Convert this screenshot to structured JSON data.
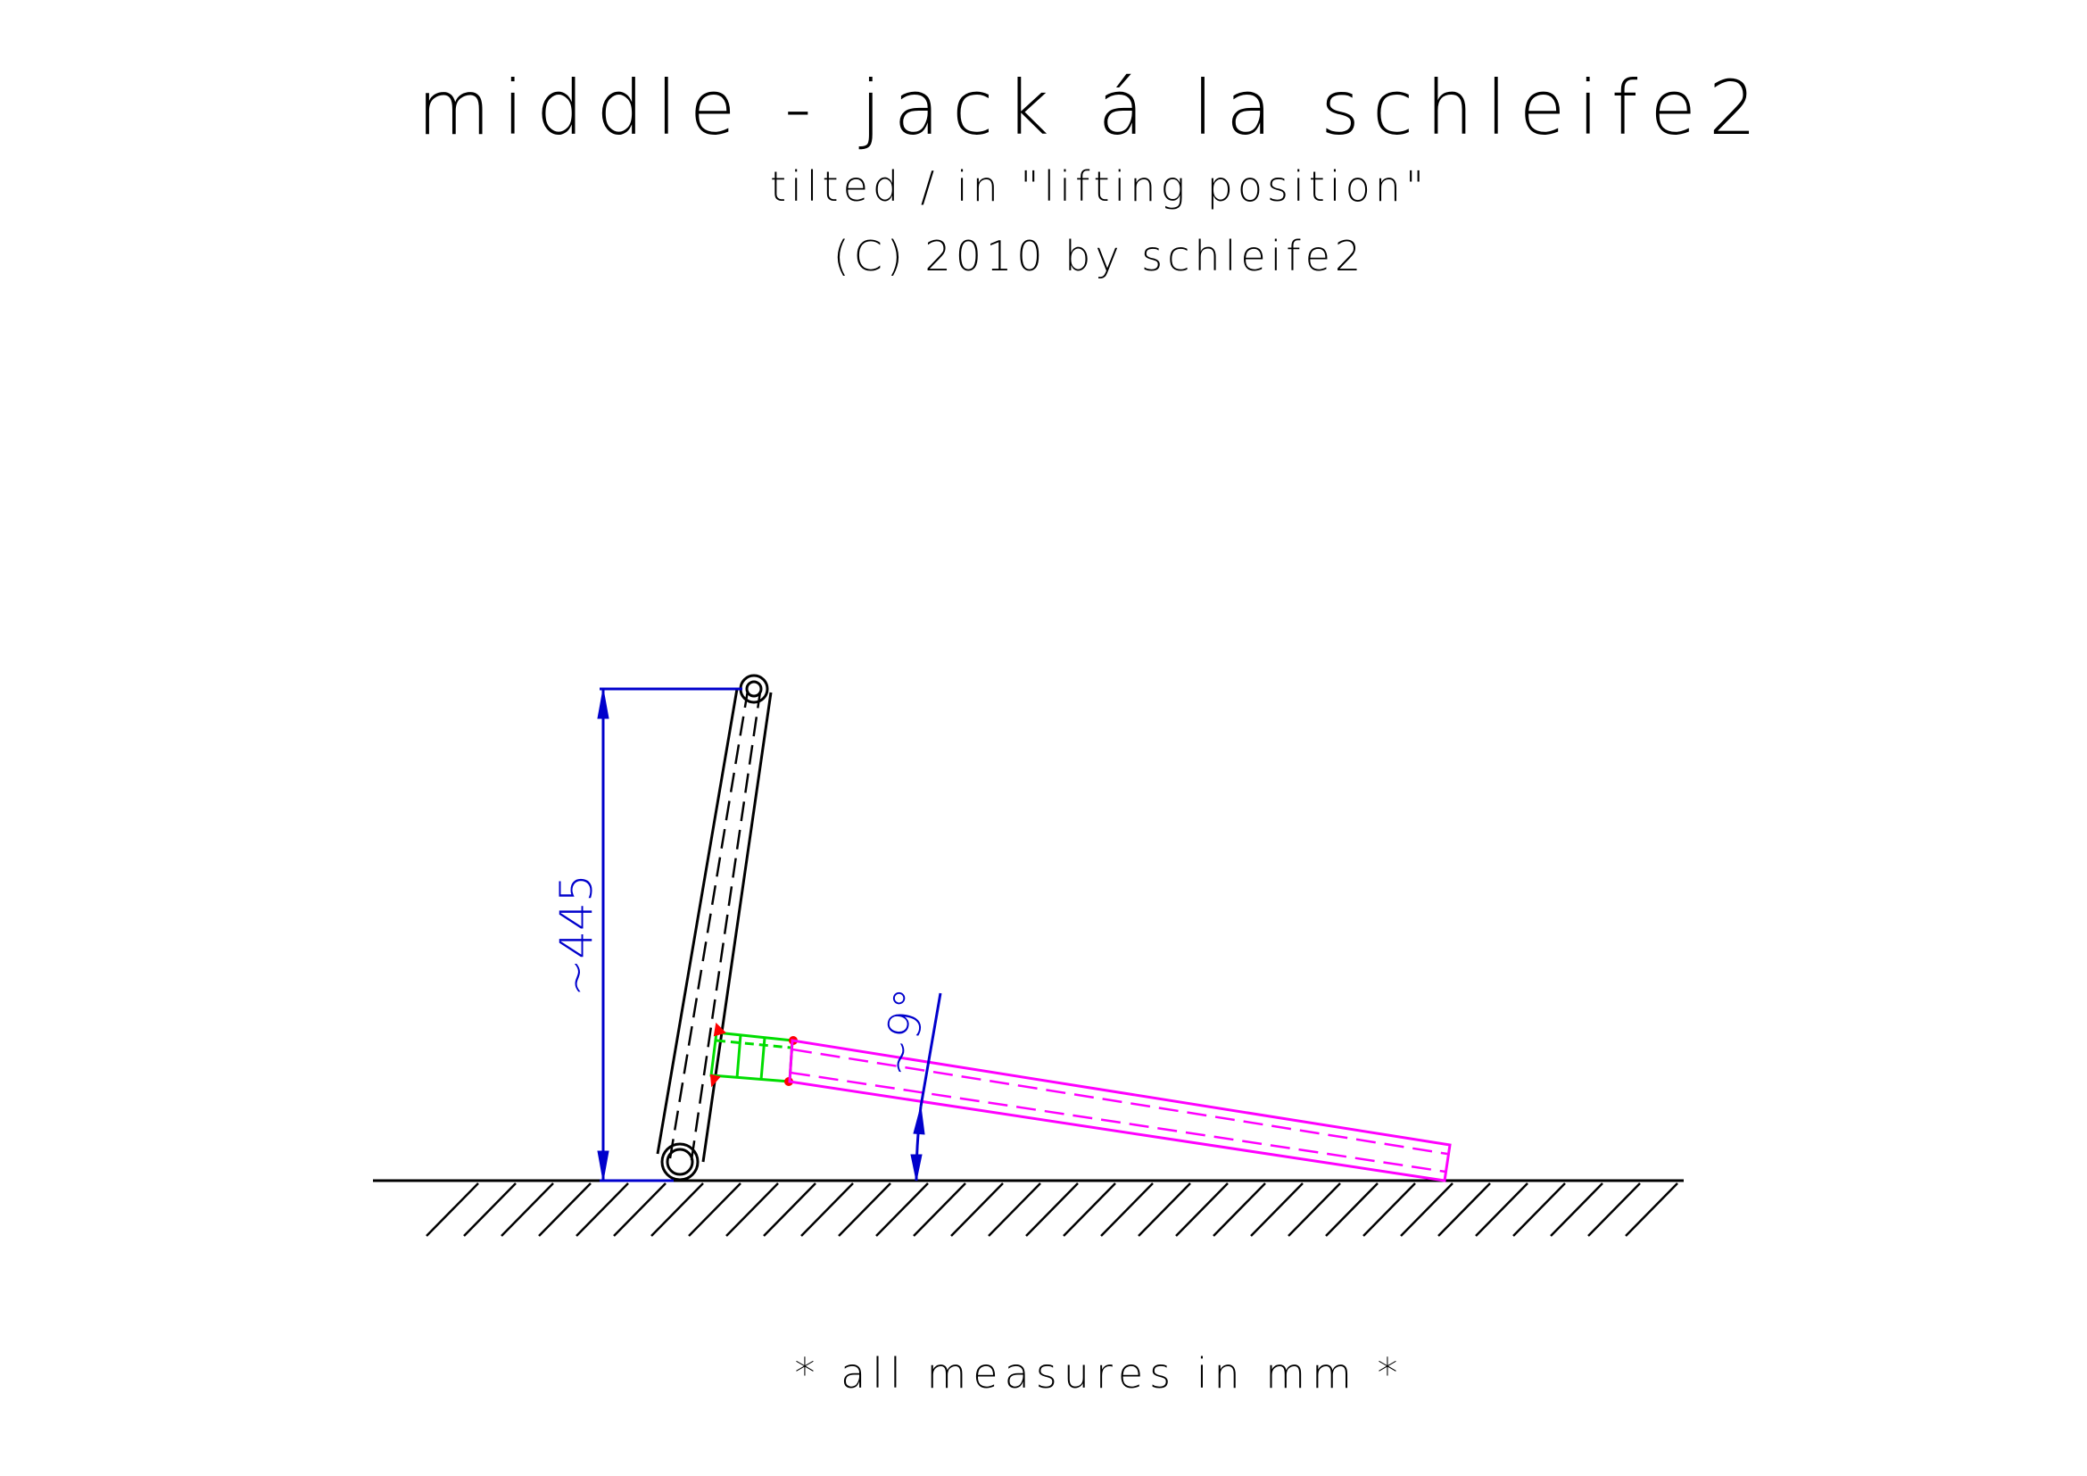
{
  "title": "middle - jack á la schleife2",
  "subtitle": "tilted / in \"lifting position\"",
  "copyright": "(C) 2010 by schleife2",
  "note": "* all measures in mm *",
  "dimensions": {
    "height_label": "~445",
    "angle_label": "~9°"
  },
  "colors": {
    "ink": "#000000",
    "dimension": "#0000cc",
    "base_beam": "#ff00ff",
    "connector": "#00dd00",
    "welds": "#ff0000"
  }
}
